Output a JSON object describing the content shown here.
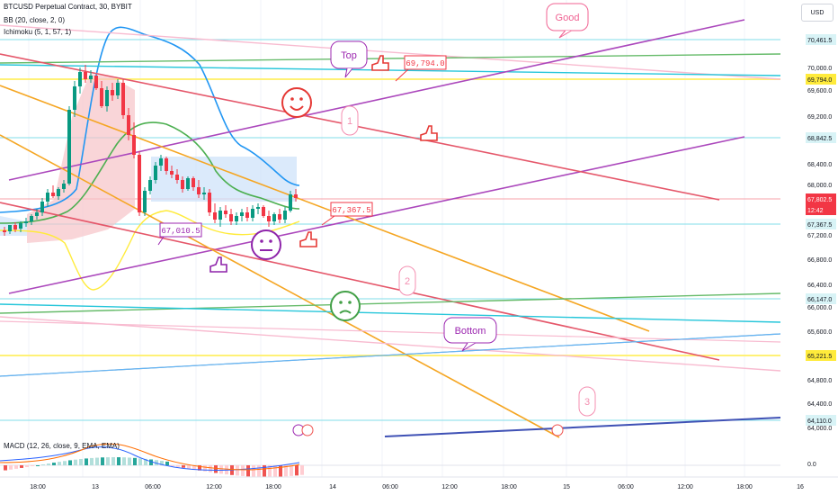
{
  "legend": {
    "symbol": "BTCUSD Perpetual Contract, 30, BYBIT",
    "bb": "BB (20, close, 2, 0)",
    "ichimoku": "Ichimoku (5, 1, 57, 1)",
    "macd": "MACD (12, 26, close, 9, EMA, EMA)"
  },
  "currency_button": "USD",
  "price_axis": {
    "ticks": [
      "70,000.0",
      "69,600.0",
      "69,200.0",
      "68,400.0",
      "68,000.0",
      "67,200.0",
      "66,800.0",
      "66,400.0",
      "66,000.0",
      "65,600.0",
      "64,800.0",
      "64,400.0",
      "64,000.0"
    ],
    "tags": [
      {
        "label": "70,461.5",
        "bg": "#d8f3f6",
        "fg": "#131722"
      },
      {
        "label": "69,794.0",
        "bg": "#ffeb3b",
        "fg": "#131722"
      },
      {
        "label": "68,842.5",
        "bg": "#d8f3f6",
        "fg": "#131722"
      },
      {
        "label": "67,802.5",
        "bg": "#f23645",
        "fg": "#ffffff"
      },
      {
        "label": "12:42",
        "bg": "#f23645",
        "fg": "#ffffff"
      },
      {
        "label": "67,367.5",
        "bg": "#d8f3f6",
        "fg": "#131722"
      },
      {
        "label": "66,147.0",
        "bg": "#d8f3f6",
        "fg": "#131722"
      },
      {
        "label": "65,221.5",
        "bg": "#ffeb3b",
        "fg": "#131722"
      },
      {
        "label": "64,110.0",
        "bg": "#d8f3f6",
        "fg": "#131722"
      }
    ]
  },
  "macd_axis_label": "0.0",
  "time_axis": [
    "18:00",
    "13",
    "06:00",
    "12:00",
    "18:00",
    "14",
    "06:00",
    "12:00",
    "18:00",
    "15",
    "06:00",
    "12:00",
    "18:00",
    "16"
  ],
  "annotations": {
    "callouts": [
      {
        "text": "Good",
        "color": "#f06292"
      },
      {
        "text": "Top",
        "color": "#9c27b0"
      },
      {
        "text": "Bottom",
        "color": "#9c27b0"
      },
      {
        "text": "1",
        "color": "#f48fb1"
      },
      {
        "text": "2",
        "color": "#f48fb1"
      },
      {
        "text": "3",
        "color": "#f48fb1"
      }
    ],
    "price_labels": [
      {
        "text": "69,794.0",
        "color": "#f23645"
      },
      {
        "text": "67,367.5",
        "color": "#f23645"
      },
      {
        "text": "67,010.5",
        "color": "#9c27b0"
      }
    ]
  },
  "colors": {
    "bull": "#089981",
    "bear": "#f23645",
    "bb_upper": "#2196f3",
    "bb_basis": "#4caf50",
    "bb_lower": "#ffeb3b",
    "purple": "#ab47bc",
    "orange": "#f5a623",
    "red_line": "#e5576a"
  }
}
